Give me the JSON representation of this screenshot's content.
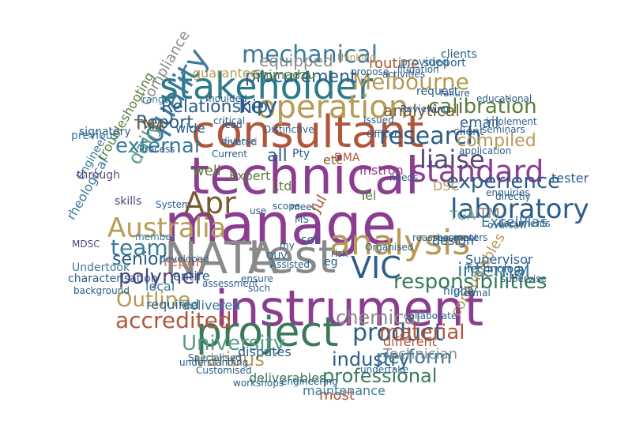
{
  "title": "",
  "colors": {
    "background": "#ffffff",
    "palette": [
      "#b0563a",
      "#3a7a9a",
      "#8c3d91",
      "#5a7f3a",
      "#b79a56",
      "#2c5d8a",
      "#5a9a8e",
      "#7a5a2f",
      "#c57a55",
      "#51437a"
    ]
  },
  "words": [
    {
      "text": "manage",
      "color": "#8c3d91"
    },
    {
      "text": "NATA",
      "color": "#8a8a8a"
    },
    {
      "text": "test",
      "color": "#8a8a8a"
    },
    {
      "text": "technical",
      "color": "#8c3d91"
    },
    {
      "text": "consultant",
      "color": "#b0563a"
    },
    {
      "text": "instrument",
      "color": "#8c3d91"
    },
    {
      "text": "project",
      "color": "#3a7a5a"
    },
    {
      "text": "stakeholder",
      "color": "#2c7a8a"
    },
    {
      "text": "operation",
      "color": "#b79a56"
    },
    {
      "text": "analysis",
      "color": "#b79a56"
    },
    {
      "text": "Apr",
      "color": "#7a5a2f"
    },
    {
      "text": "quality",
      "color": "#3a7a9a"
    },
    {
      "text": "laboratory",
      "color": "#2c5d8a"
    },
    {
      "text": "standard",
      "color": "#8c3d91"
    },
    {
      "text": "Australia",
      "color": "#b79a56"
    },
    {
      "text": "VIC",
      "color": "#2c5d8a"
    },
    {
      "text": "mechanical",
      "color": "#3a7a9a"
    },
    {
      "text": "research",
      "color": "#2c5d8a"
    },
    {
      "text": "product",
      "color": "#2c5d8a"
    },
    {
      "text": "chemical",
      "color": "#8a8a8a"
    },
    {
      "text": "responsibilities",
      "color": "#3a7a5a"
    },
    {
      "text": "material",
      "color": "#b0563a"
    },
    {
      "text": "University",
      "color": "#5a9a8e"
    },
    {
      "text": "polymer",
      "color": "#51437a"
    },
    {
      "text": "accredited",
      "color": "#b0563a"
    },
    {
      "text": "Melbourne",
      "color": "#b79a56"
    },
    {
      "text": "calibration",
      "color": "#5a7f3a"
    },
    {
      "text": "experience",
      "color": "#2c5d8a"
    },
    {
      "text": "team",
      "color": "#3a7a9a"
    },
    {
      "text": "Outline",
      "color": "#b79a56"
    },
    {
      "text": "external",
      "color": "#3a7a9a"
    },
    {
      "text": "senior",
      "color": "#2c5d8a"
    },
    {
      "text": "internal",
      "color": "#3a7a9a"
    },
    {
      "text": "industry",
      "color": "#2c5d8a"
    },
    {
      "text": "various",
      "color": "#b79a56"
    },
    {
      "text": "professional",
      "color": "#3a7a5a"
    },
    {
      "text": "perform",
      "color": "#3a7a9a"
    },
    {
      "text": "liaise",
      "color": "#5a4a7a"
    },
    {
      "text": "Report",
      "color": "#2c5d8a"
    },
    {
      "text": "daily",
      "color": "#5a9a8e"
    },
    {
      "text": "analytical",
      "color": "#7a5a2f"
    },
    {
      "text": "routine",
      "color": "#b0563a"
    },
    {
      "text": "Relationship",
      "color": "#2c5d8a"
    },
    {
      "text": "procurement",
      "color": "#2c5d8a"
    },
    {
      "text": "equipped",
      "color": "#8a8a8a"
    },
    {
      "text": "key",
      "color": "#2c5d8a"
    },
    {
      "text": "all",
      "color": "#2c5d8a"
    },
    {
      "text": "etc",
      "color": "#7a5a2f"
    },
    {
      "text": "compiled",
      "color": "#b79a56"
    },
    {
      "text": "email",
      "color": "#2c5d8a"
    },
    {
      "text": "client",
      "color": "#2c5d8a"
    },
    {
      "text": "tester",
      "color": "#2c5d8a"
    },
    {
      "text": "DSC",
      "color": "#b79a56"
    },
    {
      "text": "UTM",
      "color": "#8a8a8a"
    },
    {
      "text": "TGA",
      "color": "#5a9a8e"
    },
    {
      "text": "Compliance",
      "color": "#8a8a8a"
    },
    {
      "text": "guarantee",
      "color": "#b79a56"
    },
    {
      "text": "Shimadzu",
      "color": "#5a7f3a"
    },
    {
      "text": "Ltd",
      "color": "#5a7f3a"
    },
    {
      "text": "Pty",
      "color": "#2c5d8a"
    },
    {
      "text": "DMA",
      "color": "#b0563a"
    },
    {
      "text": "Instron",
      "color": "#8c3d91"
    },
    {
      "text": "Tel",
      "color": "#5a7f3a"
    },
    {
      "text": "Expert",
      "color": "#5a7f3a"
    },
    {
      "text": "well",
      "color": "#5a7f3a"
    },
    {
      "text": "TMA",
      "color": "#7a5a2f"
    },
    {
      "text": "repair",
      "color": "#c57a55"
    },
    {
      "text": "local",
      "color": "#3a7a9a"
    },
    {
      "text": "required",
      "color": "#2c5d8a"
    },
    {
      "text": "delivered",
      "color": "#3a7a9a"
    },
    {
      "text": "disputes",
      "color": "#2c5d8a"
    },
    {
      "text": "most",
      "color": "#b0563a"
    },
    {
      "text": "deliverables",
      "color": "#3a7a5a"
    },
    {
      "text": "maintenance",
      "color": "#3a7a9a"
    },
    {
      "text": "different",
      "color": "#b0563a"
    },
    {
      "text": "Technician",
      "color": "#8a8a8a"
    },
    {
      "text": "consumables",
      "color": "#b79a56"
    },
    {
      "text": "Supervisor",
      "color": "#2c5d8a"
    },
    {
      "text": "design",
      "color": "#2c5d8a"
    },
    {
      "text": "ExcelPlas",
      "color": "#3a7a9a"
    },
    {
      "text": "entire",
      "color": "#2c5d8a"
    },
    {
      "text": "troubleshooting",
      "color": "#5a7f3a"
    },
    {
      "text": "Engineer",
      "color": "#3a7a9a"
    },
    {
      "text": "rheological",
      "color": "#3a7a9a"
    },
    {
      "text": "signatory",
      "color": "#2c5d8a"
    },
    {
      "text": "previous",
      "color": "#3a7a9a"
    },
    {
      "text": "through",
      "color": "#5a4a7a"
    },
    {
      "text": "MDSC",
      "color": "#51437a"
    },
    {
      "text": "skills",
      "color": "#51437a"
    },
    {
      "text": "System",
      "color": "#2c5d8a"
    },
    {
      "text": "Undertook",
      "color": "#3a7a9a"
    },
    {
      "text": "characterisation",
      "color": "#2c5d8a"
    },
    {
      "text": "background",
      "color": "#2c5d8a"
    },
    {
      "text": "Specialised",
      "color": "#2c5d8a"
    },
    {
      "text": "workshops",
      "color": "#2c5d8a"
    },
    {
      "text": "engineering",
      "color": "#2c5d8a"
    },
    {
      "text": "understanding",
      "color": "#2c5d8a"
    },
    {
      "text": "undertake",
      "color": "#2c5d8a"
    },
    {
      "text": "highly",
      "color": "#2c5d8a"
    },
    {
      "text": "thermal",
      "color": "#2c5d8a"
    },
    {
      "text": "collaborate",
      "color": "#2c5d8a"
    },
    {
      "text": "wide",
      "color": "#2c5d8a"
    },
    {
      "text": "Process",
      "color": "#2c5d8a"
    },
    {
      "text": "range",
      "color": "#3a7a9a"
    },
    {
      "text": "developed",
      "color": "#2c5d8a"
    },
    {
      "text": "moulded",
      "color": "#2c5d8a"
    },
    {
      "text": "related",
      "color": "#8a8a8a"
    },
    {
      "text": "thinking",
      "color": "#b79a56"
    },
    {
      "text": "litigation",
      "color": "#2c5d8a"
    },
    {
      "text": "support",
      "color": "#2c5d8a"
    },
    {
      "text": "request",
      "color": "#2c5d8a"
    },
    {
      "text": "failure",
      "color": "#2c5d8a"
    },
    {
      "text": "provided",
      "color": "#3a7a9a"
    },
    {
      "text": "clients",
      "color": "#2c5d8a"
    },
    {
      "text": "educational",
      "color": "#2c5d8a"
    },
    {
      "text": "seminars",
      "color": "#2c5d8a"
    },
    {
      "text": "application",
      "color": "#2c5d8a"
    },
    {
      "text": "implement",
      "color": "#2c5d8a"
    },
    {
      "text": "enquiries",
      "color": "#2c5d8a"
    },
    {
      "text": "directly",
      "color": "#2c5d8a"
    },
    {
      "text": "documents",
      "color": "#2c5d8a"
    },
    {
      "text": "oversaw",
      "color": "#2c5d8a"
    },
    {
      "text": "reassessment",
      "color": "#2c5d8a"
    },
    {
      "text": "Organised",
      "color": "#2c5d8a"
    },
    {
      "text": "risk",
      "color": "#2c5d8a"
    },
    {
      "text": "such",
      "color": "#2c5d8a"
    },
    {
      "text": "ensure",
      "color": "#2c5d8a"
    },
    {
      "text": "assessment",
      "color": "#2c5d8a"
    },
    {
      "text": "Assisted",
      "color": "#2c5d8a"
    },
    {
      "text": "QUV",
      "color": "#2c5d8a"
    },
    {
      "text": "meet",
      "color": "#2c5d8a"
    },
    {
      "text": "scope",
      "color": "#2c5d8a"
    },
    {
      "text": "Current",
      "color": "#2c5d8a"
    },
    {
      "text": "Distinctive",
      "color": "#2c5d8a"
    },
    {
      "text": "Issued",
      "color": "#2c5d8a"
    },
    {
      "text": "Officer",
      "color": "#2c5d8a"
    },
    {
      "text": "Reviewing",
      "color": "#2c5d8a"
    },
    {
      "text": "activities",
      "color": "#2c5d8a"
    },
    {
      "text": "propose",
      "color": "#2c5d8a"
    },
    {
      "text": "critical",
      "color": "#2c5d8a"
    },
    {
      "text": "use",
      "color": "#2c5d8a"
    },
    {
      "text": "lead",
      "color": "#2c5d8a"
    },
    {
      "text": "diverse",
      "color": "#2c5d8a"
    },
    {
      "text": "needs",
      "color": "#2c5d8a"
    },
    {
      "text": "member",
      "color": "#3a7a9a"
    },
    {
      "text": "Customised",
      "color": "#2c5d8a"
    },
    {
      "text": "rheometers",
      "color": "#2c5d8a"
    },
    {
      "text": "eg",
      "color": "#2c5d8a"
    },
    {
      "text": "Jul",
      "color": "#b0563a"
    },
    {
      "text": "SOP",
      "color": "#2c5d8a"
    },
    {
      "text": "MS",
      "color": "#2c5d8a"
    },
    {
      "text": "my",
      "color": "#2c5d8a"
    },
    {
      "text": "supervise",
      "color": "#2c5d8a"
    },
    {
      "text": "Technology",
      "color": "#2c5d8a"
    }
  ]
}
